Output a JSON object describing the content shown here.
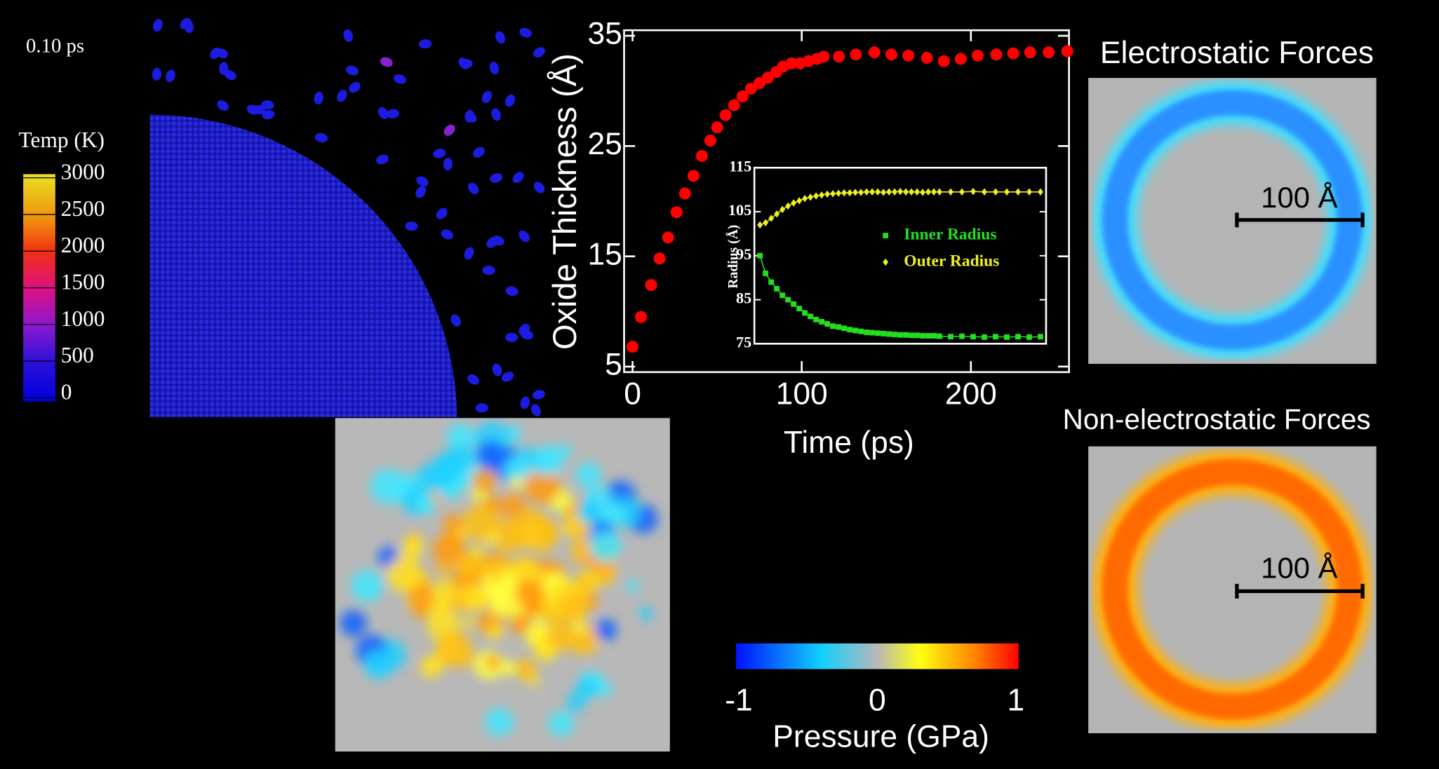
{
  "chart_data": [
    {
      "type": "scatter",
      "xlabel": "Time (ps)",
      "ylabel": "Oxide Thickness (Å)",
      "x": [
        0,
        5,
        11,
        16,
        21,
        26,
        31,
        36,
        41,
        46,
        50,
        55,
        60,
        65,
        70,
        75,
        80,
        85,
        89,
        94,
        99,
        104,
        109,
        113,
        122,
        132,
        143,
        153,
        163,
        174,
        184,
        194,
        204,
        215,
        225,
        235,
        246,
        257
      ],
      "values": [
        6.8,
        9.5,
        12.4,
        14.8,
        16.7,
        19.0,
        20.7,
        22.3,
        24.1,
        25.5,
        26.7,
        27.8,
        28.7,
        29.5,
        30.2,
        30.7,
        31.2,
        31.7,
        32.2,
        32.5,
        32.5,
        32.7,
        32.9,
        33.1,
        33.1,
        33.3,
        33.5,
        33.3,
        33.2,
        33.0,
        32.7,
        32.9,
        33.2,
        33.3,
        33.4,
        33.5,
        33.5,
        33.6
      ],
      "color": "#ff0000",
      "xlim": [
        -5,
        258
      ],
      "ylim": [
        4.5,
        35.5
      ],
      "xticks": [
        0,
        100,
        200
      ],
      "yticks": [
        5,
        15,
        25,
        35
      ]
    },
    {
      "type": "line",
      "ylabel": "Radius (Å)",
      "x": [
        0,
        5,
        10,
        15,
        20,
        25,
        30,
        35,
        40,
        45,
        50,
        55,
        60,
        65,
        70,
        75,
        80,
        85,
        90,
        95,
        100,
        105,
        110,
        115,
        120,
        125,
        130,
        135,
        140,
        145,
        150,
        155,
        160,
        170,
        180,
        190,
        200,
        210,
        220,
        230,
        240,
        250
      ],
      "series": [
        {
          "name": "Inner Radius",
          "color": "#22e01e",
          "values": [
            95,
            91,
            89,
            87.5,
            86,
            85,
            84,
            83,
            82,
            81.2,
            80.5,
            80,
            79.5,
            79,
            78.8,
            78.5,
            78.2,
            78,
            77.8,
            77.6,
            77.5,
            77.4,
            77.3,
            77.2,
            77.1,
            77,
            77,
            76.9,
            76.9,
            76.8,
            76.8,
            76.8,
            76.7,
            76.6,
            76.7,
            76.6,
            76.5,
            76.6,
            76.5,
            76.6,
            76.5,
            76.6
          ]
        },
        {
          "name": "Outer Radius",
          "color": "#f0f020",
          "values": [
            102,
            102.5,
            103.5,
            104.5,
            105.5,
            106.3,
            107,
            107.5,
            108,
            108.3,
            108.6,
            108.8,
            109,
            109.1,
            109.2,
            109.3,
            109.3,
            109.4,
            109.4,
            109.5,
            109.5,
            109.5,
            109.4,
            109.5,
            109.5,
            109.6,
            109.5,
            109.5,
            109.5,
            109.4,
            109.5,
            109.5,
            109.5,
            109.5,
            109.5,
            109.6,
            109.5,
            109.5,
            109.5,
            109.5,
            109.5,
            109.5
          ]
        }
      ],
      "xlim": [
        -5,
        255
      ],
      "ylim": [
        75,
        115
      ],
      "yticks": [
        75,
        85,
        95,
        105,
        115
      ]
    }
  ],
  "snapshot": {
    "time": "0.10 ps",
    "colorbar": {
      "label": "Temp (K)",
      "ticks": [
        0,
        500,
        1000,
        1500,
        2000,
        2500,
        3000
      ]
    }
  },
  "pressure_colorbar": {
    "label": "Pressure  (GPa)",
    "ticks": [
      -1,
      0,
      1
    ]
  },
  "maps": [
    {
      "title": "Electrostatic Forces",
      "scale_label": "100 Å"
    },
    {
      "title": "Non-electrostatic Forces",
      "scale_label": "100 Å"
    }
  ]
}
